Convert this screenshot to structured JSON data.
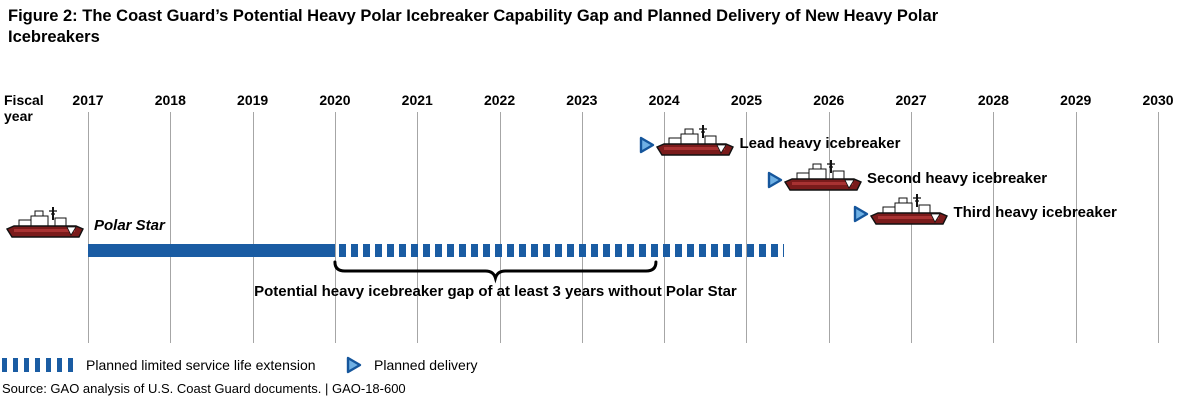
{
  "title_lines": [
    "Figure 2: The Coast Guard’s Potential Heavy Polar Icebreaker Capability Gap and Planned Delivery of New Heavy Polar",
    "Icebreakers"
  ],
  "chart_data": {
    "type": "gantt",
    "title": "Figure 2: The Coast Guard’s Potential Heavy Polar Icebreaker Capability Gap and Planned Delivery of New Heavy Polar Icebreakers",
    "x_axis": {
      "label_lines": [
        "Fiscal",
        "year"
      ],
      "ticks": [
        2017,
        2018,
        2019,
        2020,
        2021,
        2022,
        2023,
        2024,
        2025,
        2026,
        2027,
        2028,
        2029,
        2030
      ],
      "range": [
        2017,
        2030
      ],
      "grid": "vertical-yearly"
    },
    "series": [
      {
        "name": "Polar Star",
        "kind": "solid-bar",
        "start": 2017,
        "end": 2020
      },
      {
        "name": "Polar Star planned limited service life extension",
        "kind": "dashed-bar",
        "start": 2020.05,
        "end": 2025.45
      }
    ],
    "annotations": [
      {
        "kind": "brace-below",
        "start": 2020,
        "end": 2023.9,
        "label": "Potential heavy icebreaker gap of at least 3 years without Polar Star"
      }
    ],
    "deliveries": [
      {
        "label": "Lead heavy icebreaker",
        "marker_year": 2023.7
      },
      {
        "label": "Second heavy icebreaker",
        "marker_year": 2025.25
      },
      {
        "label": "Third heavy icebreaker",
        "marker_year": 2026.3
      }
    ],
    "legend": [
      {
        "symbol": "dashed-bar",
        "label": "Planned limited service life extension"
      },
      {
        "symbol": "triangle",
        "label": "Planned delivery"
      }
    ]
  },
  "source": "Source: GAO analysis of U.S. Coast Guard documents.  |  GAO-18-600",
  "colors": {
    "bar_blue": "#1A5CA3",
    "gridline_gray": "#A6A6A6",
    "triangle_fill": "#6FB0E4",
    "triangle_stroke": "#15569C",
    "ship_hull_dark": "#7A1B1B",
    "ship_hull_stripe": "#A83232",
    "text": "#000000"
  },
  "icons": {
    "ship": "icebreaker-ship-icon",
    "triangle": "planned-delivery-triangle-icon"
  }
}
